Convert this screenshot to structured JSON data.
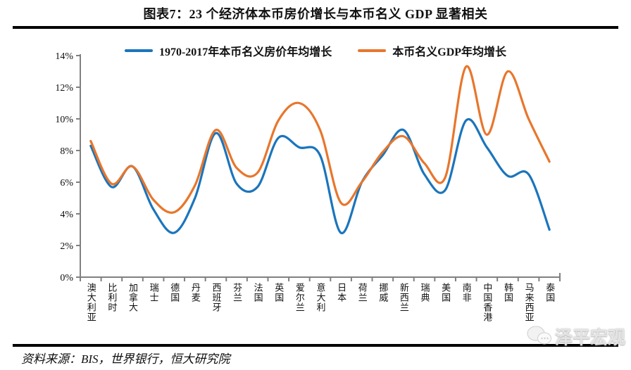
{
  "title": "图表7：23 个经济体本币房价增长与本币名义 GDP 显著相关",
  "source_note": "资料来源：BIS，世界银行，恒大研究院",
  "watermark": {
    "label": "泽平宏观",
    "icon": "wechat-chat-bubbles-icon"
  },
  "colors": {
    "house_series": "#1B75BC",
    "gdp_series": "#E8762C",
    "axis": "#808080",
    "rule": "#000000"
  },
  "chart_data": {
    "type": "line",
    "title": "图表7：23 个经济体本币房价增长与本币名义 GDP 显著相关",
    "categories": [
      "澳大利亚",
      "比利时",
      "加拿大",
      "瑞士",
      "德国",
      "丹麦",
      "西班牙",
      "芬兰",
      "法国",
      "英国",
      "爱尔兰",
      "意大利",
      "日本",
      "荷兰",
      "挪威",
      "新西兰",
      "瑞典",
      "美国",
      "南非",
      "中国香港",
      "韩国",
      "马来西亚",
      "泰国"
    ],
    "series": [
      {
        "name": "1970-2017年本币名义房价年均增长",
        "color": "#1B75BC",
        "values": [
          8.3,
          5.7,
          7.0,
          4.3,
          2.8,
          5.0,
          9.1,
          5.9,
          5.7,
          8.8,
          8.2,
          7.7,
          2.8,
          6.0,
          7.7,
          9.3,
          6.5,
          5.5,
          9.9,
          8.2,
          6.4,
          6.5,
          3.0
        ]
      },
      {
        "name": "本币名义GDP年均增长",
        "color": "#E8762C",
        "values": [
          8.6,
          5.9,
          7.0,
          4.9,
          4.1,
          5.8,
          9.3,
          6.9,
          6.6,
          9.9,
          11.0,
          9.3,
          4.7,
          6.0,
          7.9,
          8.9,
          7.2,
          6.3,
          13.3,
          9.0,
          13.0,
          10.0,
          7.3
        ]
      }
    ],
    "ylim": [
      0,
      14
    ],
    "ytick_step": 2,
    "y_tick_labels": [
      "0%",
      "2%",
      "4%",
      "6%",
      "8%",
      "10%",
      "12%",
      "14%"
    ],
    "grid": false,
    "legend_position": "top",
    "line_smoothing": "spline"
  }
}
